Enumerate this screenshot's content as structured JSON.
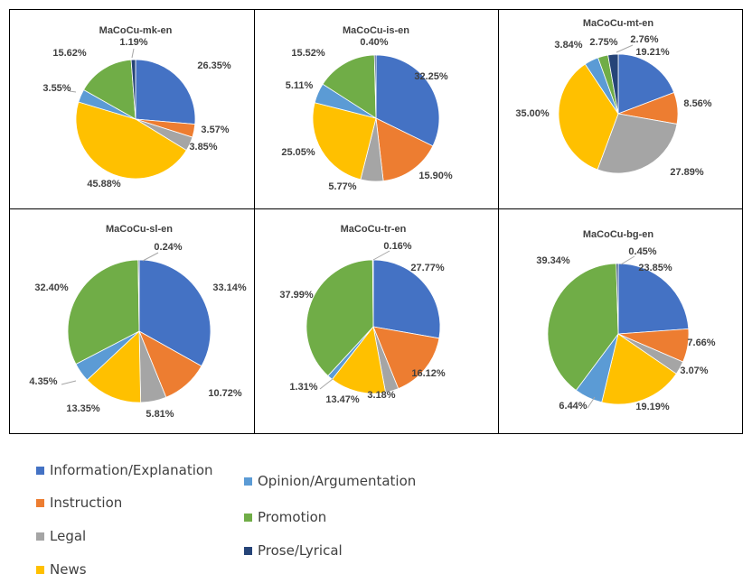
{
  "colors": {
    "Information/Explanation": "#4472c4",
    "Instruction": "#ed7d31",
    "Legal": "#a5a5a5",
    "News": "#ffc000",
    "Opinion/Argumentation": "#5b9bd5",
    "Promotion": "#70ad47",
    "Prose/Lyrical": "#264478"
  },
  "legend": {
    "col1": [
      "Information/Explanation",
      "Instruction",
      "Legal",
      "News"
    ],
    "col2": [
      "Opinion/Argumentation",
      "Promotion",
      "Prose/Lyrical"
    ]
  },
  "chart_data": [
    {
      "type": "pie",
      "title": "MaCoCu-mk-en",
      "categories": [
        "Information/Explanation",
        "Instruction",
        "Legal",
        "News",
        "Opinion/Argumentation",
        "Promotion",
        "Prose/Lyrical"
      ],
      "values": [
        26.35,
        3.57,
        3.85,
        45.88,
        3.55,
        15.62,
        1.19
      ],
      "labels": [
        "26.35%",
        "3.57%",
        "3.85%",
        "45.88%",
        "3.55%",
        "15.62%",
        "1.19%"
      ]
    },
    {
      "type": "pie",
      "title": "MaCoCu-is-en",
      "categories": [
        "Information/Explanation",
        "Instruction",
        "Legal",
        "News",
        "Opinion/Argumentation",
        "Promotion",
        "Prose/Lyrical"
      ],
      "values": [
        32.25,
        15.9,
        5.77,
        25.05,
        5.11,
        15.52,
        0.4
      ],
      "labels": [
        "32.25%",
        "15.90%",
        "5.77%",
        "25.05%",
        "5.11%",
        "15.52%",
        "0.40%"
      ]
    },
    {
      "type": "pie",
      "title": "MaCoCu-mt-en",
      "categories": [
        "Information/Explanation",
        "Instruction",
        "Legal",
        "News",
        "Opinion/Argumentation",
        "Promotion",
        "Prose/Lyrical"
      ],
      "values": [
        19.21,
        8.56,
        27.89,
        35.0,
        3.84,
        2.75,
        2.76
      ],
      "labels": [
        "19.21%",
        "8.56%",
        "27.89%",
        "35.00%",
        "3.84%",
        "2.75%",
        "2.76%"
      ]
    },
    {
      "type": "pie",
      "title": "MaCoCu-sl-en",
      "categories": [
        "Information/Explanation",
        "Instruction",
        "Legal",
        "News",
        "Opinion/Argumentation",
        "Promotion",
        "Prose/Lyrical"
      ],
      "values": [
        33.14,
        10.72,
        5.81,
        13.35,
        4.35,
        32.4,
        0.24
      ],
      "labels": [
        "33.14%",
        "10.72%",
        "5.81%",
        "13.35%",
        "4.35%",
        "32.40%",
        "0.24%"
      ]
    },
    {
      "type": "pie",
      "title": "MaCoCu-tr-en",
      "categories": [
        "Information/Explanation",
        "Instruction",
        "Legal",
        "News",
        "Opinion/Argumentation",
        "Promotion",
        "Prose/Lyrical"
      ],
      "values": [
        27.77,
        16.12,
        3.18,
        13.47,
        1.31,
        37.99,
        0.16
      ],
      "labels": [
        "27.77%",
        "16.12%",
        "3.18%",
        "13.47%",
        "1.31%",
        "37.99%",
        "0.16%"
      ]
    },
    {
      "type": "pie",
      "title": "MaCoCu-bg-en",
      "categories": [
        "Information/Explanation",
        "Instruction",
        "Legal",
        "News",
        "Opinion/Argumentation",
        "Promotion",
        "Prose/Lyrical"
      ],
      "values": [
        23.85,
        7.66,
        3.07,
        19.19,
        6.44,
        39.34,
        0.45
      ],
      "labels": [
        "23.85%",
        "7.66%",
        "3.07%",
        "19.19%",
        "6.44%",
        "39.34%",
        "0.45%"
      ]
    }
  ]
}
